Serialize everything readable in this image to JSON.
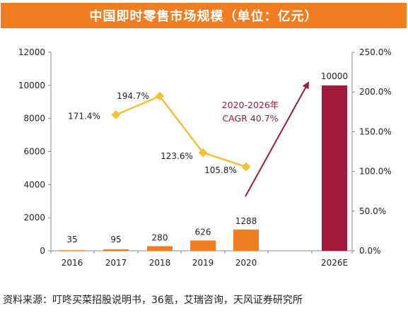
{
  "title": "中国即时零售市场规模（单位：亿元）",
  "source": "资料来源：叮咚买菜招股说明书，36氪，艾瑞咨询，天风证券研究所",
  "annotation": {
    "line1": "2020-2026年",
    "line2": "CAGR 40.7%"
  },
  "colors": {
    "title_bg": "#f07d1f",
    "bar": "#f07d1f",
    "bar_forecast": "#a3193c",
    "line": "#f2c233",
    "annotation": "#a3193c"
  },
  "chart_data": {
    "type": "bar",
    "categories": [
      "2016",
      "2017",
      "2018",
      "2019",
      "2020",
      "2026E"
    ],
    "series": [
      {
        "values": [
          35,
          95,
          280,
          626,
          1288,
          10000
        ],
        "axis": "left",
        "data_labels": [
          "35",
          "95",
          "280",
          "626",
          "1288",
          "10000"
        ]
      },
      {
        "type": "line",
        "axis": "right",
        "values": [
          null,
          171.4,
          194.7,
          123.6,
          105.8,
          null
        ],
        "data_labels": [
          "",
          "171.4%",
          "194.7%",
          "123.6%",
          "105.8%",
          ""
        ]
      }
    ],
    "y_left": {
      "min": 0,
      "max": 12000,
      "ticks": [
        "0",
        "2000",
        "4000",
        "6000",
        "8000",
        "10000",
        "12000"
      ]
    },
    "y_right": {
      "min": 0,
      "max": 250,
      "ticks": [
        "0.0%",
        "50.0%",
        "100.0%",
        "150.0%",
        "200.0%",
        "250.0%"
      ]
    },
    "grid": false,
    "legend": "none"
  }
}
